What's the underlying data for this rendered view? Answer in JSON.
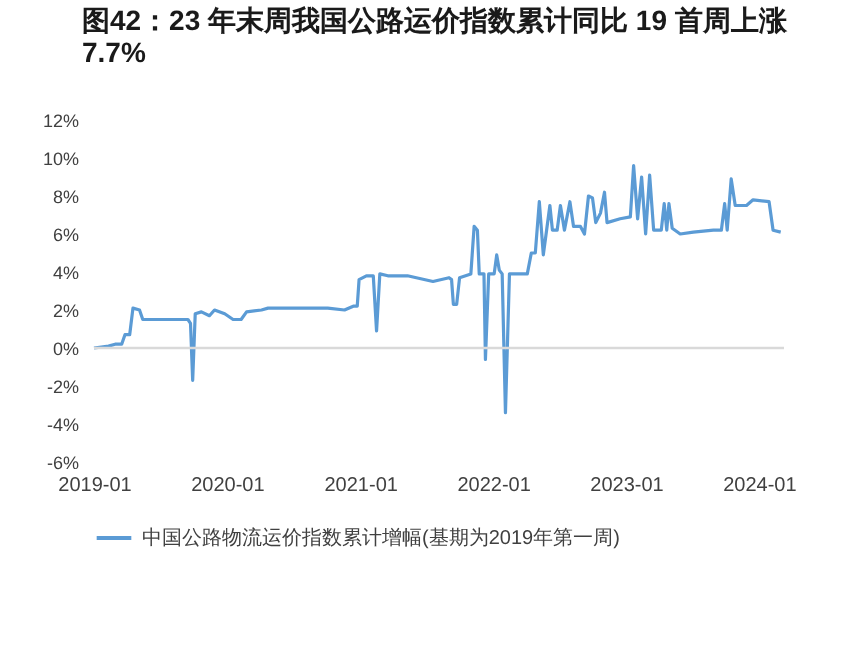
{
  "chart_data": {
    "type": "line",
    "title": "图42：23 年末周我国公路运价指数累计同比 19 首周上涨 7.7%",
    "x": [
      "2019-01-01",
      "2019-02-10",
      "2019-02-28",
      "2019-03-18",
      "2019-03-27",
      "2019-04-09",
      "2019-04-18",
      "2019-05-06",
      "2019-05-15",
      "2019-06-17",
      "2019-09-16",
      "2019-09-23",
      "2019-09-29",
      "2019-10-06",
      "2019-10-23",
      "2019-11-14",
      "2019-11-28",
      "2019-12-26",
      "2020-01-18",
      "2020-02-09",
      "2020-02-24",
      "2020-04-05",
      "2020-04-23",
      "2020-07-23",
      "2020-10-04",
      "2020-11-19",
      "2020-12-13",
      "2020-12-24",
      "2020-12-29",
      "2021-01-18",
      "2021-02-06",
      "2021-02-15",
      "2021-02-24",
      "2021-03-18",
      "2021-05-11",
      "2021-07-20",
      "2021-09-02",
      "2021-09-09",
      "2021-09-14",
      "2021-09-23",
      "2021-10-01",
      "2021-11-01",
      "2021-11-10",
      "2021-11-19",
      "2021-11-24",
      "2021-12-07",
      "2021-12-11",
      "2021-12-20",
      "2022-01-04",
      "2022-01-11",
      "2022-01-18",
      "2022-01-26",
      "2022-02-04",
      "2022-02-15",
      "2022-04-05",
      "2022-04-16",
      "2022-04-27",
      "2022-05-08",
      "2022-05-19",
      "2022-05-28",
      "2022-06-06",
      "2022-06-13",
      "2022-06-26",
      "2022-07-05",
      "2022-07-16",
      "2022-07-31",
      "2022-08-10",
      "2022-08-29",
      "2022-09-09",
      "2022-09-20",
      "2022-10-01",
      "2022-10-10",
      "2022-10-23",
      "2022-11-03",
      "2022-11-10",
      "2022-12-16",
      "2023-01-13",
      "2023-01-22",
      "2023-02-02",
      "2023-02-13",
      "2023-02-24",
      "2023-03-07",
      "2023-03-18",
      "2023-04-08",
      "2023-04-16",
      "2023-04-23",
      "2023-04-29",
      "2023-05-08",
      "2023-05-30",
      "2023-07-05",
      "2023-08-29",
      "2023-09-20",
      "2023-09-29",
      "2023-10-06",
      "2023-10-17",
      "2023-10-28",
      "2023-11-28",
      "2023-12-16",
      "2024-01-29",
      "2024-02-09",
      "2024-03-01"
    ],
    "series": [
      {
        "name": "中国公路物流运价指数累计增幅(基期为2019年第一周)",
        "color": "#5b9bd5",
        "values": [
          0,
          0.1,
          0.2,
          0.2,
          0.7,
          0.7,
          2.1,
          2.0,
          1.5,
          1.5,
          1.5,
          1.3,
          -1.7,
          1.8,
          1.9,
          1.7,
          2.0,
          1.8,
          1.5,
          1.5,
          1.9,
          2.0,
          2.1,
          2.1,
          2.1,
          2.0,
          2.2,
          2.2,
          3.6,
          3.8,
          3.8,
          0.9,
          3.9,
          3.8,
          3.8,
          3.5,
          3.7,
          3.6,
          2.3,
          2.3,
          3.7,
          3.9,
          6.4,
          6.2,
          3.9,
          3.9,
          -0.6,
          3.9,
          3.9,
          4.9,
          4.1,
          3.9,
          -3.4,
          3.9,
          3.9,
          5.0,
          5.0,
          7.7,
          4.9,
          6.2,
          7.5,
          6.2,
          6.2,
          7.5,
          6.2,
          7.7,
          6.4,
          6.4,
          6.0,
          8.0,
          7.9,
          6.6,
          7.1,
          8.2,
          6.6,
          6.8,
          6.9,
          9.6,
          6.8,
          9.0,
          6.0,
          9.1,
          6.2,
          6.2,
          7.6,
          6.2,
          7.6,
          6.3,
          6.0,
          6.1,
          6.2,
          6.2,
          7.6,
          6.2,
          8.9,
          7.5,
          7.5,
          7.8,
          7.7,
          6.2,
          6.1
        ]
      }
    ],
    "xlim": [
      "2019-01-01",
      "2024-03-10"
    ],
    "xticks": [
      "2019-01",
      "2020-01",
      "2021-01",
      "2022-01",
      "2023-01",
      "2024-01"
    ],
    "ylim": [
      -6,
      12
    ],
    "yticks": [
      {
        "value": -6,
        "label": "-6%"
      },
      {
        "value": -4,
        "label": "-4%"
      },
      {
        "value": -2,
        "label": "-2%"
      },
      {
        "value": 0,
        "label": "0%"
      },
      {
        "value": 2,
        "label": "2%"
      },
      {
        "value": 4,
        "label": "4%"
      },
      {
        "value": 6,
        "label": "6%"
      },
      {
        "value": 8,
        "label": "8%"
      },
      {
        "value": 10,
        "label": "10%"
      },
      {
        "value": 12,
        "label": "12%"
      }
    ],
    "ref_lines": [
      {
        "axis": "y",
        "value": 0,
        "color": "#d9d9d9"
      }
    ],
    "grid": false,
    "legend": "bottom",
    "marker": "none",
    "line_style": "solid"
  }
}
